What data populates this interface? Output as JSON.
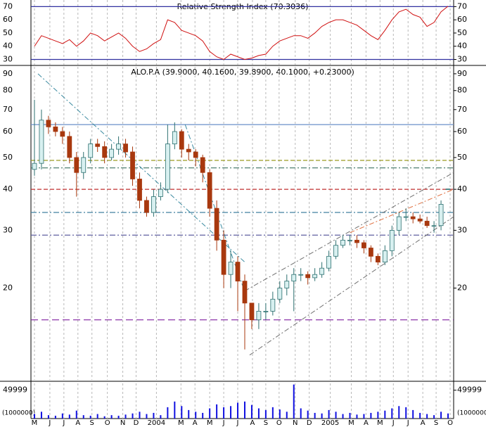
{
  "chart_data": [
    {
      "type": "line",
      "title": "Relative Strength Index (70.3036)",
      "color": "#d01010",
      "values": [
        40,
        48,
        46,
        44,
        42,
        45,
        40,
        44,
        50,
        48,
        44,
        47,
        50,
        46,
        40,
        36,
        38,
        42,
        45,
        60,
        58,
        52,
        50,
        48,
        44,
        36,
        32,
        30,
        34,
        32,
        30,
        31,
        33,
        34,
        40,
        44,
        46,
        48,
        48,
        46,
        50,
        55,
        58,
        60,
        60,
        58,
        56,
        52,
        48,
        45,
        52,
        60,
        66,
        68,
        64,
        62,
        55,
        58,
        66,
        70.3
      ],
      "ylim": [
        26,
        75
      ],
      "yticks": [
        30,
        40,
        50,
        60,
        70
      ],
      "hlines": [
        {
          "value": 70,
          "color": "#3030a0"
        },
        {
          "value": 30,
          "color": "#3030a0"
        }
      ]
    },
    {
      "type": "candlestick",
      "title": "ALO.P.A (39.9000, 40.1600, 39.8900, 40.1000, +0.23000)",
      "log_scale": true,
      "up_color": "#2d7070",
      "down_color": "#a8380e",
      "open": [
        46,
        48,
        65,
        62,
        60,
        58,
        50,
        45,
        50,
        55,
        54,
        50,
        53,
        55,
        52,
        43,
        37,
        34,
        38,
        40,
        55,
        60,
        53,
        52,
        50,
        45,
        35,
        28,
        22,
        24,
        21,
        18,
        16,
        17,
        17,
        18.5,
        20,
        21,
        22,
        22,
        21.5,
        22,
        23,
        25,
        27,
        28,
        28,
        27.5,
        26.5,
        25,
        24,
        26,
        30,
        33,
        33,
        32.5,
        32,
        31,
        31,
        39.9
      ],
      "high": [
        75,
        70,
        67,
        64,
        62,
        60,
        52,
        52,
        57,
        57,
        56,
        55,
        58,
        57,
        54,
        45,
        38,
        40,
        42,
        63,
        64,
        61,
        55,
        53,
        51,
        46,
        37,
        30,
        26,
        25,
        22,
        18,
        18,
        18,
        19.5,
        21,
        22,
        23,
        23,
        22.5,
        23,
        24,
        26,
        28,
        29,
        29,
        29,
        28,
        27,
        25.5,
        27,
        31,
        34,
        35,
        34,
        33.5,
        33,
        32,
        37,
        40.16
      ],
      "low": [
        44,
        46,
        59,
        58,
        55,
        48,
        38,
        43,
        48,
        52,
        48,
        49,
        51,
        50,
        41,
        35,
        33,
        33,
        37,
        39,
        53,
        50,
        49,
        47,
        42,
        33,
        26,
        20,
        20,
        17,
        13,
        15,
        15,
        16,
        16.5,
        18,
        19,
        17,
        21,
        20.5,
        21,
        21.5,
        22.5,
        24.5,
        26.5,
        27,
        26.5,
        25.5,
        24,
        23.5,
        23.5,
        25,
        29,
        32,
        31.5,
        31.5,
        30.5,
        29.5,
        30,
        39.89
      ],
      "close": [
        48,
        65,
        62,
        60,
        58,
        50,
        45,
        50,
        55,
        54,
        50,
        53,
        55,
        52,
        43,
        37,
        34,
        38,
        40,
        55,
        60,
        53,
        52,
        50,
        45,
        35,
        28,
        22,
        24,
        21,
        18,
        16,
        17,
        17,
        18.5,
        20,
        21,
        22,
        22,
        21.5,
        22,
        23,
        25,
        27,
        28,
        28,
        27.5,
        26.5,
        25,
        24,
        26,
        30,
        33,
        33,
        32.5,
        32,
        31,
        31,
        36,
        40.1
      ],
      "ylim": [
        10.5,
        94.5
      ],
      "yticks": [
        20,
        30,
        40,
        50,
        60,
        70,
        80,
        90
      ],
      "hlines": [
        {
          "value": 63,
          "color": "#6a8fc8",
          "dash": "none"
        },
        {
          "value": 49,
          "color": "#9a9a20",
          "dash": "6 3"
        },
        {
          "value": 46.5,
          "color": "#508070",
          "dash": "8 3 2 3"
        },
        {
          "value": 40,
          "color": "#c03030",
          "dash": "6 3"
        },
        {
          "value": 34,
          "color": "#4080a0",
          "dash": "8 3 2 3"
        },
        {
          "value": 29,
          "color": "#6060a0",
          "dash": "8 3 2 3"
        },
        {
          "value": 16,
          "color": "#8020a0",
          "dash": "10 5"
        }
      ],
      "trendlines": [
        {
          "from": [
            0.5,
            90
          ],
          "to": [
            30,
            24
          ],
          "color": "#3a8aa0"
        },
        {
          "from": [
            21.5,
            63
          ],
          "to": [
            30,
            19.5
          ],
          "color": "#3a8aa0"
        },
        {
          "from": [
            30,
            19.6
          ],
          "to": [
            59.8,
            45
          ],
          "color": "#707070"
        },
        {
          "from": [
            30.7,
            12.5
          ],
          "to": [
            59.8,
            33
          ],
          "color": "#707070"
        },
        {
          "from": [
            45,
            29.5
          ],
          "to": [
            59.8,
            40
          ],
          "color": "#e07040"
        }
      ]
    },
    {
      "type": "bar",
      "color": "#1010e0",
      "unit_label": "(1000000)",
      "values": [
        8000,
        12000,
        6000,
        5000,
        9000,
        7000,
        14000,
        6000,
        5000,
        8000,
        4000,
        6000,
        5000,
        7000,
        9000,
        12000,
        8000,
        10000,
        6000,
        20000,
        30000,
        22000,
        15000,
        12000,
        10000,
        18000,
        25000,
        20000,
        22000,
        28000,
        30000,
        24000,
        18000,
        15000,
        20000,
        16000,
        12000,
        60000,
        18000,
        14000,
        10000,
        9000,
        15000,
        12000,
        8000,
        10000,
        7000,
        8000,
        10000,
        12000,
        14000,
        18000,
        22000,
        20000,
        15000,
        10000,
        8000,
        6000,
        12000,
        9000
      ],
      "ylim": [
        0,
        62000
      ],
      "yticks": [
        49999
      ],
      "xlim": [
        -0.5,
        59.8
      ],
      "xticks": [
        {
          "value": 0,
          "label": "M"
        },
        {
          "value": 2.2,
          "label": "J"
        },
        {
          "value": 4.2,
          "label": "J"
        },
        {
          "value": 6.2,
          "label": "A"
        },
        {
          "value": 8.2,
          "label": "S"
        },
        {
          "value": 10.4,
          "label": "O"
        },
        {
          "value": 12.6,
          "label": "N"
        },
        {
          "value": 14.5,
          "label": "D"
        },
        {
          "value": 17.4,
          "label": "2004"
        },
        {
          "value": 20.9,
          "label": "M"
        },
        {
          "value": 22.9,
          "label": "A"
        },
        {
          "value": 25,
          "label": "M"
        },
        {
          "value": 27,
          "label": "J"
        },
        {
          "value": 29,
          "label": "J"
        },
        {
          "value": 31.1,
          "label": "A"
        },
        {
          "value": 33,
          "label": "S"
        },
        {
          "value": 34.9,
          "label": "O"
        },
        {
          "value": 37.2,
          "label": "N"
        },
        {
          "value": 39.2,
          "label": "D"
        },
        {
          "value": 42.2,
          "label": "2005"
        },
        {
          "value": 45.2,
          "label": "M"
        },
        {
          "value": 47.3,
          "label": "A"
        },
        {
          "value": 49.3,
          "label": "M"
        },
        {
          "value": 51.2,
          "label": "J"
        },
        {
          "value": 53.3,
          "label": "J"
        },
        {
          "value": 55.4,
          "label": "A"
        },
        {
          "value": 57.3,
          "label": "S"
        },
        {
          "value": 59.3,
          "label": "O"
        }
      ]
    }
  ]
}
